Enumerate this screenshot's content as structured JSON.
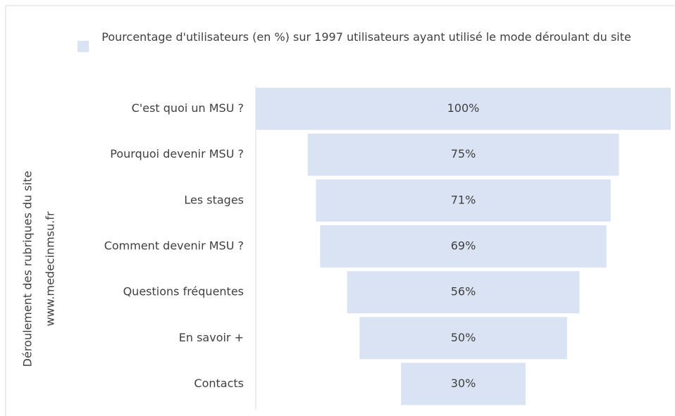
{
  "chart_data": {
    "type": "funnel",
    "ylabel": [
      "Déroulement des rubriques du site",
      "www.medecinmsu.fr"
    ],
    "categories": [
      "C'est quoi un MSU ?",
      "Pourquoi devenir MSU ?",
      "Les stages",
      "Comment devenir MSU ?",
      "Questions fréquentes",
      "En savoir +",
      "Contacts"
    ],
    "series": [
      {
        "name": "Pourcentage d'utilisateurs (en %) sur 1997 utilisateurs ayant utilisé le mode déroulant du site",
        "color": "#dae3f3",
        "values": [
          100,
          75,
          71,
          69,
          56,
          50,
          30
        ],
        "value_labels": [
          "100%",
          "75%",
          "71%",
          "69%",
          "56%",
          "50%",
          "30%"
        ]
      }
    ],
    "legend": "top"
  }
}
